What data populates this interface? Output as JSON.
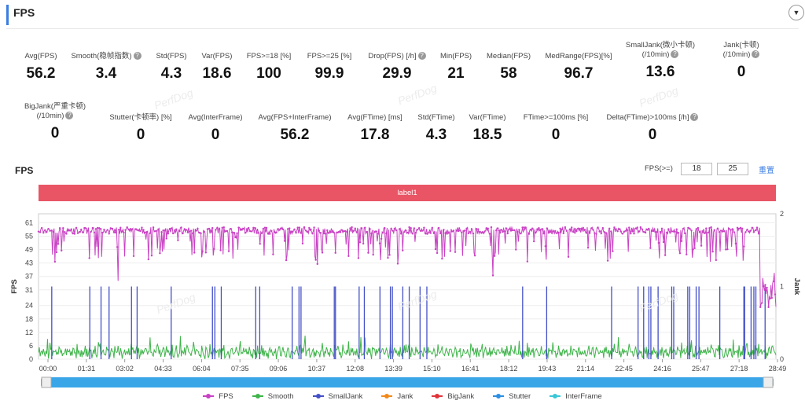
{
  "header": {
    "title": "FPS",
    "collapse_icon": "chevron-down-icon"
  },
  "metrics_row1": [
    {
      "label": "Avg(FPS)",
      "value": "56.2",
      "help": false
    },
    {
      "label": "Smooth(稳帧指数)",
      "value": "3.4",
      "help": true
    },
    {
      "label": "Std(FPS)",
      "value": "4.3",
      "help": false
    },
    {
      "label": "Var(FPS)",
      "value": "18.6",
      "help": false
    },
    {
      "label": "FPS>=18 [%]",
      "value": "100",
      "help": false
    },
    {
      "label": "FPS>=25 [%]",
      "value": "99.9",
      "help": false
    },
    {
      "label": "Drop(FPS) [/h]",
      "value": "29.9",
      "help": true
    },
    {
      "label": "Min(FPS)",
      "value": "21",
      "help": false
    },
    {
      "label": "Median(FPS)",
      "value": "58",
      "help": false
    },
    {
      "label": "MedRange(FPS)[%]",
      "value": "96.7",
      "help": false
    },
    {
      "label": "SmallJank(微小卡顿)",
      "label2": "(/10min)",
      "value": "13.6",
      "help": true
    },
    {
      "label": "Jank(卡顿)",
      "label2": "(/10min)",
      "value": "0",
      "help": true
    }
  ],
  "metrics_row2": [
    {
      "label": "BigJank(严重卡顿)",
      "label2": "(/10min)",
      "value": "0",
      "help": true
    },
    {
      "label": "Stutter(卡顿率) [%]",
      "value": "0",
      "help": false
    },
    {
      "label": "Avg(InterFrame)",
      "value": "0",
      "help": false
    },
    {
      "label": "Avg(FPS+InterFrame)",
      "value": "56.2",
      "help": false
    },
    {
      "label": "Avg(FTime) [ms]",
      "value": "17.8",
      "help": false
    },
    {
      "label": "Std(FTime)",
      "value": "4.3",
      "help": false
    },
    {
      "label": "Var(FTime)",
      "value": "18.5",
      "help": false
    },
    {
      "label": "FTime>=100ms [%]",
      "value": "0",
      "help": false
    },
    {
      "label": "Delta(FTime)>100ms [/h]",
      "value": "0",
      "help": true
    }
  ],
  "watermark": "PerfDog",
  "chart_controls": {
    "title": "FPS",
    "fps_ge_label": "FPS(>=)",
    "threshold1": "18",
    "threshold2": "25",
    "reset": "重置"
  },
  "label_band": "label1",
  "chart_data": {
    "type": "line",
    "x_ticks": [
      "00:00",
      "01:31",
      "03:02",
      "04:33",
      "06:04",
      "07:35",
      "09:06",
      "10:37",
      "12:08",
      "13:39",
      "15:10",
      "16:41",
      "18:12",
      "19:43",
      "21:14",
      "22:45",
      "24:16",
      "25:47",
      "27:18",
      "28:49"
    ],
    "ylabel": "FPS",
    "y2label": "Jank",
    "y_ticks": [
      0,
      6,
      12,
      18,
      24,
      31,
      37,
      43,
      49,
      55,
      61
    ],
    "ylim": [
      0,
      65
    ],
    "y2_ticks": [
      0,
      1,
      2
    ],
    "y2lim": [
      0,
      2
    ],
    "x_range_seconds": [
      0,
      1840
    ],
    "colors": {
      "FPS": "#c941c4",
      "Smooth": "#3fb44a",
      "SmallJank": "#4350c7",
      "Jank": "#f28a1b",
      "BigJank": "#e0343a",
      "Stutter": "#2b8fe3",
      "InterFrame": "#3ac7d8"
    },
    "series": [
      {
        "name": "FPS",
        "summary": {
          "avg": 56.2,
          "min": 21,
          "median": 58,
          "max": 61
        }
      },
      {
        "name": "Smooth",
        "summary": {
          "avg": 3.4,
          "typical_range": [
            0,
            8
          ]
        }
      },
      {
        "name": "SmallJank",
        "events_x_seconds": [
          33,
          128,
          156,
          176,
          232,
          246,
          331,
          434,
          440,
          456,
          542,
          552,
          633,
          650,
          655,
          738,
          741,
          800,
          813,
          852,
          878,
          883,
          909,
          925,
          952,
          969,
          1208,
          1268,
          1430,
          1496,
          1510,
          1523,
          1528,
          1546,
          1580,
          1585,
          1620,
          1625,
          1641,
          1648,
          1700,
          1760,
          1762,
          1778,
          1785,
          1790,
          1813
        ],
        "value": 1
      },
      {
        "name": "Jank",
        "values": []
      },
      {
        "name": "BigJank",
        "values": []
      },
      {
        "name": "Stutter",
        "values": []
      },
      {
        "name": "InterFrame",
        "values": []
      }
    ],
    "legend": [
      "FPS",
      "Smooth",
      "SmallJank",
      "Jank",
      "BigJank",
      "Stutter",
      "InterFrame"
    ],
    "legend_position": "bottom",
    "grid": true
  }
}
